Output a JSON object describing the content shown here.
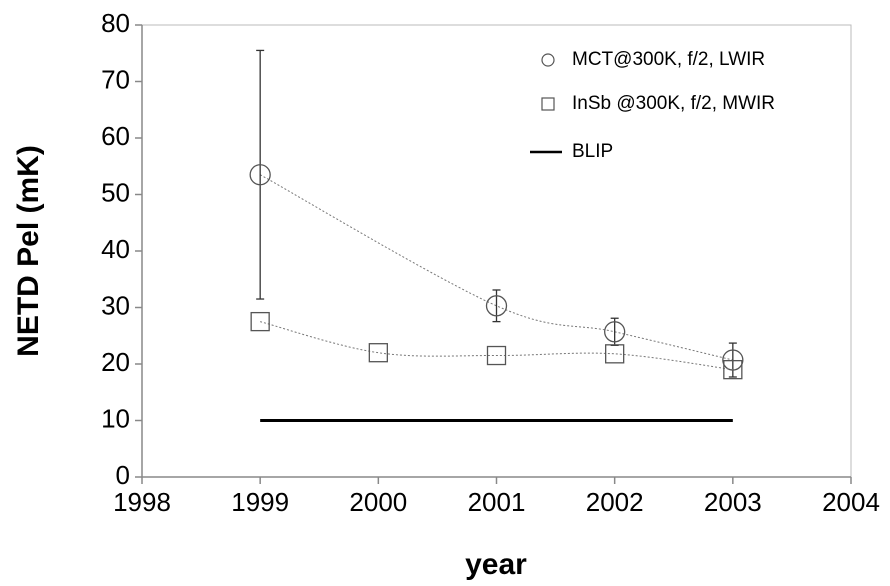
{
  "chart_data": {
    "type": "scatter",
    "x_label": "year",
    "y_label": "NETD Pel (mK)",
    "xlim": [
      1998,
      2004
    ],
    "xticks": [
      1998,
      1999,
      2000,
      2001,
      2002,
      2003,
      2004
    ],
    "ylim": [
      0,
      80
    ],
    "yticks": [
      0,
      10,
      20,
      30,
      40,
      50,
      60,
      70,
      80
    ],
    "legend": "upper right",
    "series": [
      {
        "name": "MCT@300K, f/2, LWIR",
        "marker": "circle",
        "color": "#555555",
        "x": [
          1999,
          2001,
          2002,
          2003
        ],
        "values": [
          53.5,
          30.3,
          25.7,
          20.7
        ],
        "errors": [
          22,
          2.8,
          2.4,
          3
        ]
      },
      {
        "name": "InSb @300K, f/2, MWIR",
        "marker": "square",
        "color": "#555555",
        "x": [
          1999,
          2000,
          2001,
          2002,
          2003
        ],
        "values": [
          27.5,
          22,
          21.5,
          21.8,
          19
        ]
      },
      {
        "name": "BLIP",
        "marker": "line",
        "color": "#000000",
        "x": [
          1999,
          2003
        ],
        "values": [
          10,
          10
        ]
      }
    ]
  }
}
